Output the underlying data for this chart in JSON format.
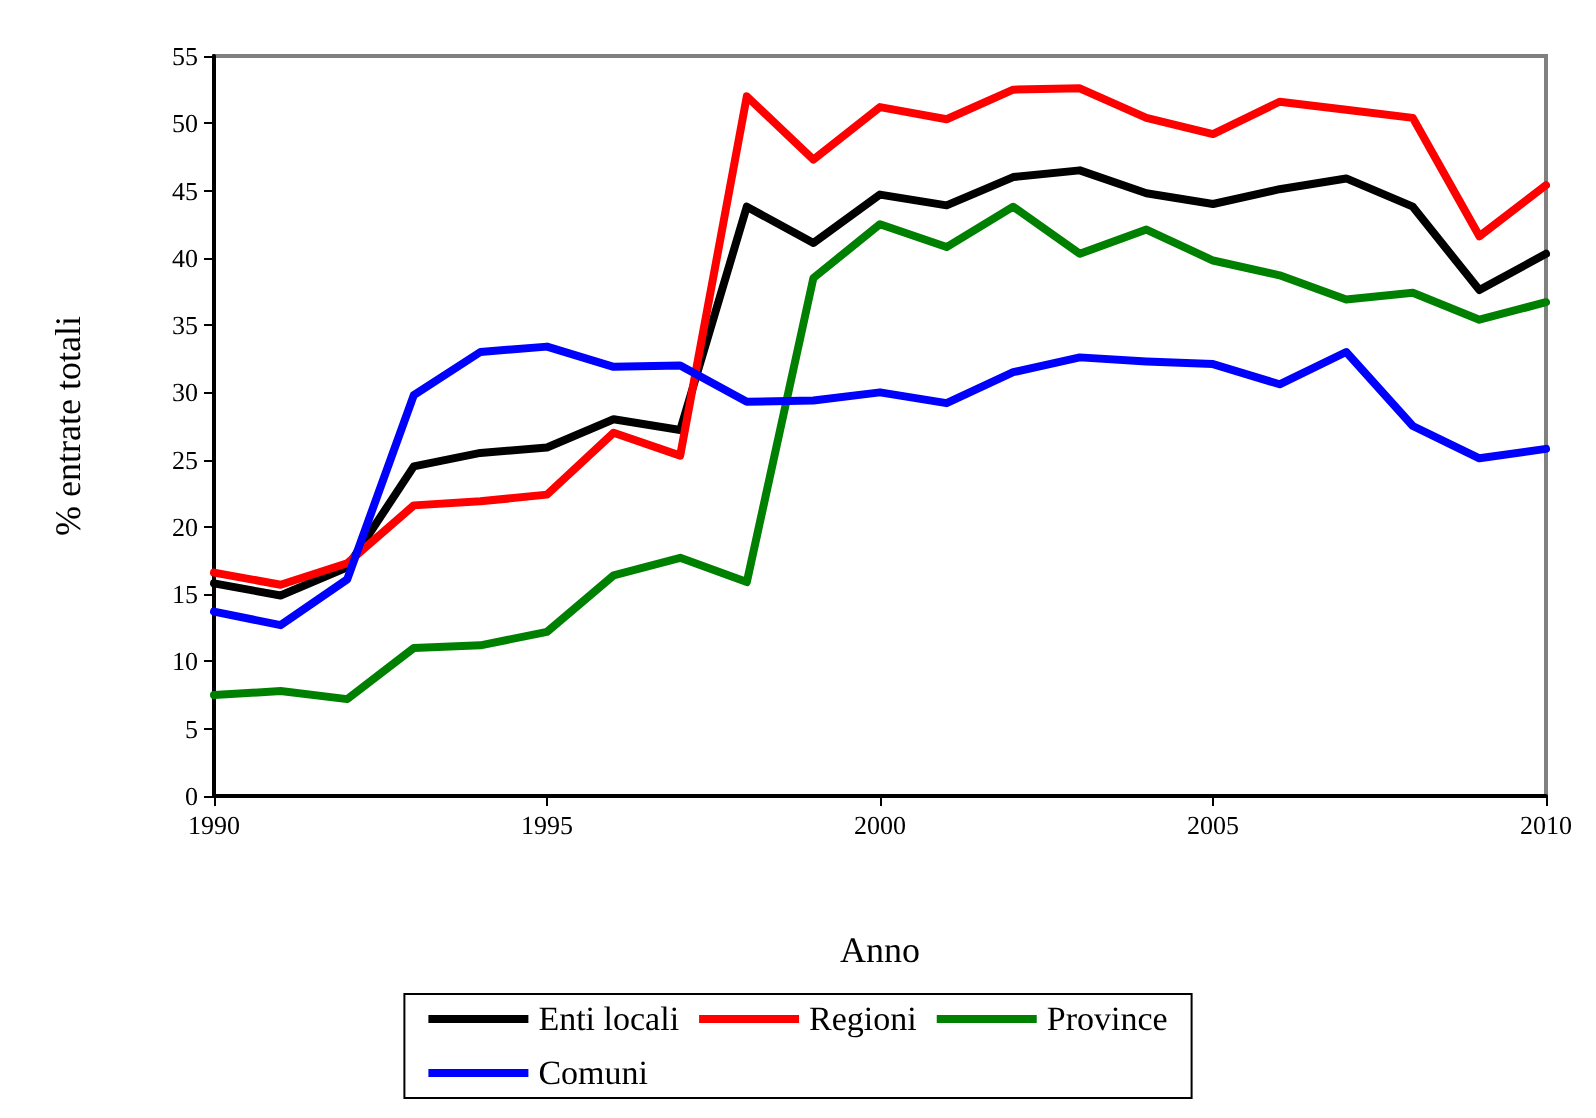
{
  "chart_data": {
    "type": "line",
    "xlabel": "Anno",
    "ylabel": "% entrate totali",
    "x": [
      1990,
      1991,
      1992,
      1993,
      1994,
      1995,
      1996,
      1997,
      1998,
      1999,
      2000,
      2001,
      2002,
      2003,
      2004,
      2005,
      2006,
      2007,
      2008,
      2009,
      2010
    ],
    "series": [
      {
        "name": "Enti locali",
        "color": "#000000",
        "values": [
          15.8,
          14.9,
          17,
          24.5,
          25.5,
          25.9,
          28,
          27.2,
          43.8,
          41.1,
          44.7,
          43.9,
          46,
          46.5,
          44.8,
          44,
          45.1,
          45.9,
          43.8,
          37.6,
          40.3
        ]
      },
      {
        "name": "Regioni",
        "color": "#ff0000",
        "values": [
          16.6,
          15.7,
          17.3,
          21.6,
          21.9,
          22.4,
          27,
          25.3,
          52,
          47.3,
          51.2,
          50.3,
          52.5,
          52.6,
          50.4,
          49.2,
          51.6,
          51,
          50.4,
          41.6,
          45.4
        ]
      },
      {
        "name": "Province",
        "color": "#008000",
        "values": [
          7.5,
          7.8,
          7.2,
          11,
          11.2,
          12.2,
          16.4,
          17.7,
          15.9,
          38.5,
          42.5,
          40.8,
          43.8,
          40.3,
          42.1,
          39.8,
          38.7,
          36.9,
          37.4,
          35.4,
          36.7
        ]
      },
      {
        "name": "Comuni",
        "color": "#0000ff",
        "values": [
          13.7,
          12.7,
          16.1,
          29.8,
          33,
          33.4,
          31.9,
          32,
          29.3,
          29.4,
          30,
          29.2,
          31.5,
          32.6,
          32.3,
          32.1,
          30.6,
          33,
          27.5,
          25.1,
          25.8
        ]
      }
    ],
    "xlim": [
      1990,
      2010
    ],
    "xticks": [
      1990,
      1995,
      2000,
      2005,
      2010
    ],
    "ylim": [
      0,
      55
    ],
    "yticks": [
      0,
      5,
      10,
      15,
      20,
      25,
      30,
      35,
      40,
      45,
      50,
      55
    ],
    "grid": false,
    "legend": "bottom",
    "marker": "none",
    "line_style": "solid"
  }
}
